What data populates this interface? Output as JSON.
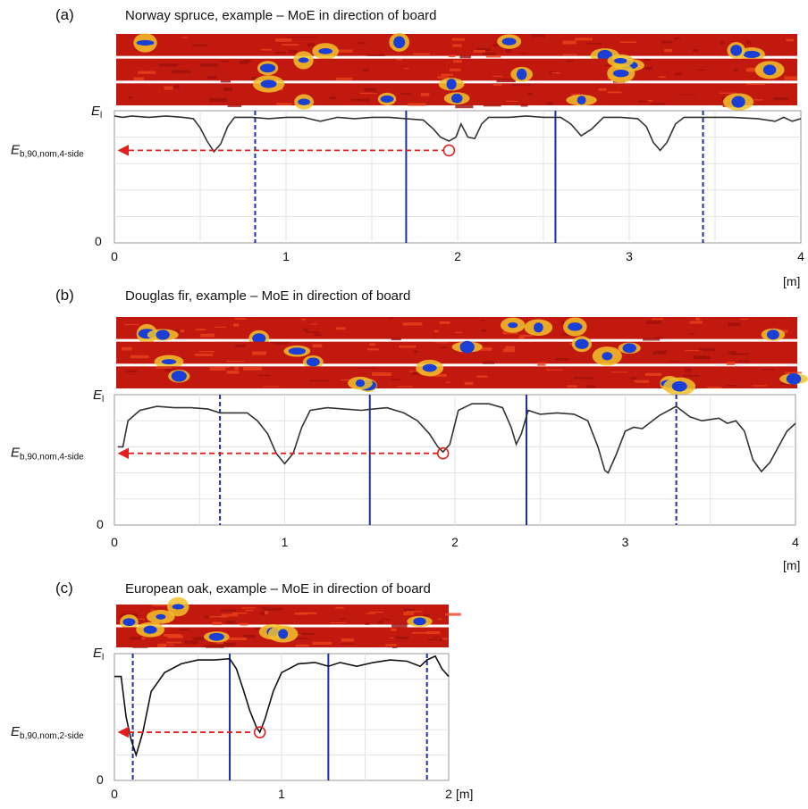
{
  "chart_data": [
    {
      "type": "line",
      "panel_label": "(a)",
      "title": "Norway spruce, example – MoE in direction of board",
      "ylabel_top": "E",
      "ylabel_top_sub": "l",
      "ref_label": "E",
      "ref_label_sub": "b,90,nom,4-side",
      "y_tick_labels": [
        "0"
      ],
      "x_ticks": [
        "0",
        "1",
        "2",
        "3",
        "4"
      ],
      "x_unit": "[m]",
      "xlim": [
        0,
        4
      ],
      "ylim": [
        0,
        1
      ],
      "ref_level": 0.7,
      "ref_point_x": 1.95,
      "solid_lines": [
        1.7,
        2.57
      ],
      "dashed_lines": [
        0.82,
        3.43
      ],
      "profile": [
        [
          0,
          0.96
        ],
        [
          0.05,
          0.95
        ],
        [
          0.1,
          0.96
        ],
        [
          0.2,
          0.95
        ],
        [
          0.3,
          0.96
        ],
        [
          0.4,
          0.95
        ],
        [
          0.46,
          0.94
        ],
        [
          0.5,
          0.87
        ],
        [
          0.54,
          0.77
        ],
        [
          0.58,
          0.69
        ],
        [
          0.62,
          0.75
        ],
        [
          0.66,
          0.88
        ],
        [
          0.7,
          0.95
        ],
        [
          0.8,
          0.95
        ],
        [
          0.9,
          0.94
        ],
        [
          1.0,
          0.95
        ],
        [
          1.1,
          0.95
        ],
        [
          1.2,
          0.92
        ],
        [
          1.3,
          0.95
        ],
        [
          1.4,
          0.94
        ],
        [
          1.5,
          0.95
        ],
        [
          1.6,
          0.95
        ],
        [
          1.7,
          0.94
        ],
        [
          1.8,
          0.93
        ],
        [
          1.86,
          0.86
        ],
        [
          1.9,
          0.8
        ],
        [
          1.95,
          0.77
        ],
        [
          1.99,
          0.8
        ],
        [
          2.02,
          0.9
        ],
        [
          2.06,
          0.8
        ],
        [
          2.1,
          0.79
        ],
        [
          2.14,
          0.9
        ],
        [
          2.18,
          0.95
        ],
        [
          2.3,
          0.95
        ],
        [
          2.4,
          0.96
        ],
        [
          2.5,
          0.95
        ],
        [
          2.6,
          0.95
        ],
        [
          2.66,
          0.9
        ],
        [
          2.72,
          0.81
        ],
        [
          2.78,
          0.86
        ],
        [
          2.85,
          0.95
        ],
        [
          2.95,
          0.95
        ],
        [
          3.05,
          0.94
        ],
        [
          3.1,
          0.88
        ],
        [
          3.14,
          0.76
        ],
        [
          3.18,
          0.7
        ],
        [
          3.22,
          0.76
        ],
        [
          3.27,
          0.9
        ],
        [
          3.32,
          0.95
        ],
        [
          3.45,
          0.95
        ],
        [
          3.6,
          0.95
        ],
        [
          3.75,
          0.94
        ],
        [
          3.85,
          0.92
        ],
        [
          3.9,
          0.95
        ],
        [
          3.95,
          0.92
        ],
        [
          4.0,
          0.94
        ]
      ],
      "boards": 3,
      "board_length": 4
    },
    {
      "type": "line",
      "panel_label": "(b)",
      "title": "Douglas fir, example – MoE in direction of board",
      "ylabel_top": "E",
      "ylabel_top_sub": "l",
      "ref_label": "E",
      "ref_label_sub": "b,90,nom,4-side",
      "y_tick_labels": [
        "0"
      ],
      "x_ticks": [
        "0",
        "1",
        "2",
        "3",
        "4"
      ],
      "x_unit": "[m]",
      "xlim": [
        0,
        4
      ],
      "ylim": [
        0,
        1
      ],
      "ref_level": 0.55,
      "ref_point_x": 1.93,
      "solid_lines": [
        1.5,
        2.42
      ],
      "dashed_lines": [
        0.62,
        3.3
      ],
      "profile": [
        [
          0.02,
          0.6
        ],
        [
          0.05,
          0.6
        ],
        [
          0.08,
          0.8
        ],
        [
          0.15,
          0.88
        ],
        [
          0.25,
          0.91
        ],
        [
          0.35,
          0.9
        ],
        [
          0.45,
          0.9
        ],
        [
          0.55,
          0.89
        ],
        [
          0.62,
          0.86
        ],
        [
          0.7,
          0.86
        ],
        [
          0.78,
          0.86
        ],
        [
          0.84,
          0.8
        ],
        [
          0.9,
          0.7
        ],
        [
          0.95,
          0.55
        ],
        [
          1.0,
          0.47
        ],
        [
          1.05,
          0.55
        ],
        [
          1.1,
          0.75
        ],
        [
          1.15,
          0.88
        ],
        [
          1.25,
          0.9
        ],
        [
          1.35,
          0.89
        ],
        [
          1.45,
          0.88
        ],
        [
          1.52,
          0.89
        ],
        [
          1.6,
          0.9
        ],
        [
          1.7,
          0.86
        ],
        [
          1.78,
          0.8
        ],
        [
          1.85,
          0.7
        ],
        [
          1.9,
          0.6
        ],
        [
          1.93,
          0.56
        ],
        [
          1.97,
          0.62
        ],
        [
          2.02,
          0.88
        ],
        [
          2.1,
          0.93
        ],
        [
          2.2,
          0.93
        ],
        [
          2.28,
          0.9
        ],
        [
          2.33,
          0.75
        ],
        [
          2.36,
          0.62
        ],
        [
          2.39,
          0.7
        ],
        [
          2.43,
          0.88
        ],
        [
          2.5,
          0.85
        ],
        [
          2.6,
          0.86
        ],
        [
          2.7,
          0.85
        ],
        [
          2.78,
          0.8
        ],
        [
          2.84,
          0.6
        ],
        [
          2.88,
          0.42
        ],
        [
          2.9,
          0.4
        ],
        [
          2.95,
          0.55
        ],
        [
          3.0,
          0.72
        ],
        [
          3.05,
          0.75
        ],
        [
          3.1,
          0.74
        ],
        [
          3.2,
          0.84
        ],
        [
          3.3,
          0.91
        ],
        [
          3.38,
          0.83
        ],
        [
          3.45,
          0.8
        ],
        [
          3.55,
          0.82
        ],
        [
          3.6,
          0.78
        ],
        [
          3.65,
          0.8
        ],
        [
          3.7,
          0.72
        ],
        [
          3.75,
          0.5
        ],
        [
          3.8,
          0.41
        ],
        [
          3.85,
          0.48
        ],
        [
          3.9,
          0.6
        ],
        [
          3.95,
          0.72
        ],
        [
          4.0,
          0.78
        ]
      ],
      "boards": 3,
      "board_length": 4
    },
    {
      "type": "line",
      "panel_label": "(c)",
      "title": "European oak, example – MoE in direction of board",
      "ylabel_top": "E",
      "ylabel_top_sub": "l",
      "ref_label": "E",
      "ref_label_sub": "b,90,nom,2-side",
      "y_tick_labels": [
        "0"
      ],
      "x_ticks": [
        "0",
        "1",
        "2"
      ],
      "x_unit": "[m]",
      "xlim": [
        0,
        2
      ],
      "ylim": [
        0,
        1
      ],
      "ref_level": 0.38,
      "ref_point_x": 0.87,
      "solid_lines": [
        0.69,
        1.28
      ],
      "dashed_lines": [
        0.11,
        1.87
      ],
      "profile": [
        [
          0,
          0.82
        ],
        [
          0.04,
          0.82
        ],
        [
          0.07,
          0.5
        ],
        [
          0.1,
          0.32
        ],
        [
          0.13,
          0.2
        ],
        [
          0.17,
          0.38
        ],
        [
          0.22,
          0.7
        ],
        [
          0.3,
          0.85
        ],
        [
          0.4,
          0.92
        ],
        [
          0.5,
          0.95
        ],
        [
          0.6,
          0.95
        ],
        [
          0.69,
          0.96
        ],
        [
          0.73,
          0.88
        ],
        [
          0.77,
          0.72
        ],
        [
          0.81,
          0.55
        ],
        [
          0.85,
          0.42
        ],
        [
          0.87,
          0.38
        ],
        [
          0.9,
          0.48
        ],
        [
          0.95,
          0.7
        ],
        [
          1.0,
          0.85
        ],
        [
          1.1,
          0.92
        ],
        [
          1.2,
          0.93
        ],
        [
          1.28,
          0.9
        ],
        [
          1.35,
          0.93
        ],
        [
          1.45,
          0.9
        ],
        [
          1.55,
          0.93
        ],
        [
          1.65,
          0.95
        ],
        [
          1.75,
          0.94
        ],
        [
          1.83,
          0.9
        ],
        [
          1.87,
          0.95
        ],
        [
          1.92,
          0.98
        ],
        [
          1.96,
          0.88
        ],
        [
          2.0,
          0.82
        ]
      ],
      "boards": 2,
      "board_length": 2
    }
  ]
}
